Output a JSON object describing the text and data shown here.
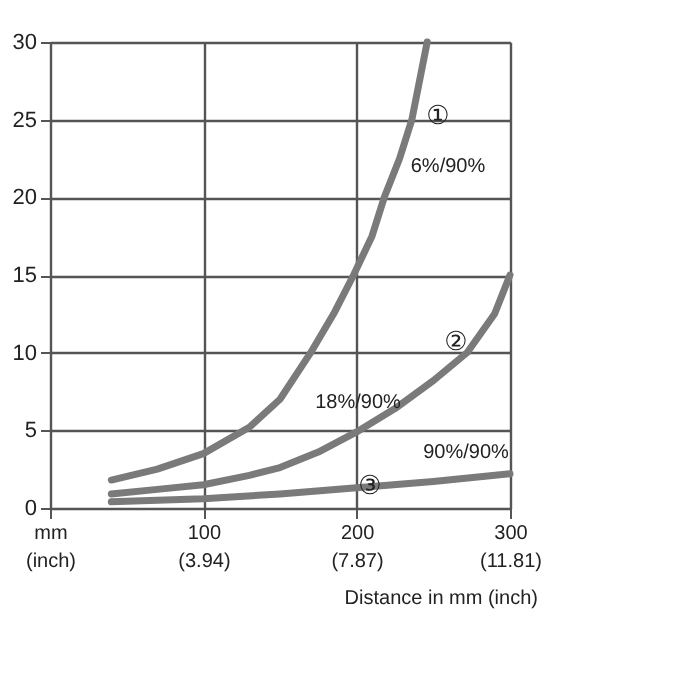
{
  "chart_data": {
    "type": "line",
    "xlabel": "Distance in mm (inch)",
    "series": [
      {
        "color": "#7a7a7a",
        "x": [
          40,
          70,
          100,
          130,
          150,
          170,
          185,
          198,
          210,
          218,
          228,
          236,
          246
        ],
        "values": [
          1.8,
          2.5,
          3.5,
          5.2,
          7,
          10,
          12.5,
          15,
          17.5,
          20,
          22.5,
          25,
          30
        ]
      },
      {
        "color": "#7a7a7a",
        "x": [
          40,
          70,
          100,
          130,
          150,
          175,
          200,
          225,
          250,
          272,
          290,
          300
        ],
        "values": [
          0.9,
          1.2,
          1.5,
          2.1,
          2.6,
          3.6,
          4.9,
          6.4,
          8.2,
          10,
          12.5,
          15
        ]
      },
      {
        "color": "#7a7a7a",
        "x": [
          40,
          100,
          150,
          200,
          250,
          300
        ],
        "values": [
          0.4,
          0.6,
          0.9,
          1.3,
          1.7,
          2.2
        ]
      }
    ],
    "xlim": [
      0,
      300
    ],
    "ylim": [
      0,
      30
    ],
    "xticks": [
      {
        "value": 0,
        "label": "mm"
      },
      100,
      200,
      300
    ],
    "x2lim": [
      0,
      11.81
    ],
    "x2ticks": [
      {
        "value": 0,
        "label": "(inch)"
      },
      {
        "value": 3.94,
        "label": "(3.94)"
      },
      {
        "value": 7.87,
        "label": "(7.87)"
      },
      {
        "value": 11.81,
        "label": "(11.81)"
      }
    ],
    "yticks": [
      0,
      5,
      10,
      15,
      20,
      25,
      30
    ],
    "grid": true,
    "line_style": "solid",
    "marker": "none",
    "annotations": [
      "①",
      "6%/90%",
      "②",
      "18%/90%",
      "③",
      "90%/90%"
    ]
  }
}
